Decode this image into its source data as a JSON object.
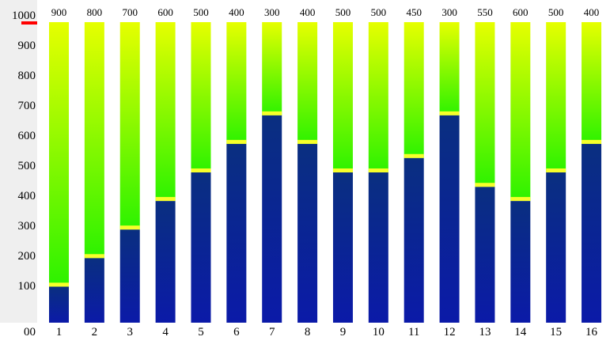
{
  "chart_data": {
    "type": "bar",
    "title": "",
    "xlabel": "",
    "ylabel": "",
    "ylim": [
      0,
      1000
    ],
    "y_ticks": [
      100,
      200,
      300,
      400,
      500,
      600,
      700,
      800,
      900,
      1000
    ],
    "y_zero_label": "00",
    "categories": [
      "1",
      "2",
      "3",
      "4",
      "5",
      "6",
      "7",
      "8",
      "9",
      "10",
      "11",
      "12",
      "13",
      "14",
      "15",
      "16"
    ],
    "top_labels": [
      "900",
      "800",
      "700",
      "600",
      "500",
      "400",
      "300",
      "400",
      "500",
      "500",
      "450",
      "300",
      "550",
      "600",
      "500",
      "400"
    ],
    "filled_values": [
      120,
      215,
      310,
      405,
      500,
      595,
      690,
      595,
      500,
      500,
      548,
      690,
      452,
      405,
      500,
      595
    ],
    "marker_value": 1000,
    "grid": false,
    "legend": "none",
    "colors": {
      "axis_panel": "#efefef",
      "marker": "#ff0000",
      "fill_top": "#0a2f80",
      "fill_bottom": "#0b1aa8",
      "remaining_top": "#e6ff00",
      "remaining_bottom": "#2cf200",
      "level_line": "#f7ff2a"
    }
  }
}
